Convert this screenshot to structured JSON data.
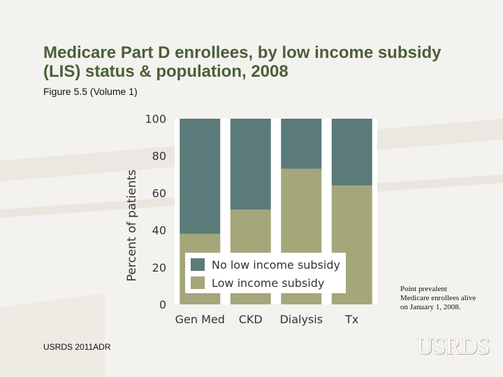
{
  "slide": {
    "title": "Medicare Part D enrollees, by low income subsidy (LIS) status & population, 2008",
    "subtitle": "Figure 5.5 (Volume 1)",
    "note": "Point prevalent Medicare enrollees alive on January 1, 2008.",
    "footer": "USRDS 2011ADR",
    "logo": "USRDS"
  },
  "colors": {
    "no_lis": "#5b7b7a",
    "lis": "#a5a77a",
    "plot_bg": "#ffffff",
    "title": "#4a5f3a"
  },
  "chart_data": {
    "type": "bar",
    "stacked": true,
    "title": "",
    "xlabel": "",
    "ylabel": "Percent of patients",
    "ylim": [
      0,
      100
    ],
    "yticks": [
      0,
      20,
      40,
      60,
      80,
      100
    ],
    "categories": [
      "Gen Med",
      "CKD",
      "Dialysis",
      "Tx"
    ],
    "series": [
      {
        "name": "Low income subsidy",
        "values": [
          38,
          51,
          73,
          64
        ]
      },
      {
        "name": "No low income subsidy",
        "values": [
          62,
          49,
          27,
          36
        ]
      }
    ],
    "legend": [
      "No low income subsidy",
      "Low income subsidy"
    ],
    "legend_position": "bottom-center-inside"
  }
}
